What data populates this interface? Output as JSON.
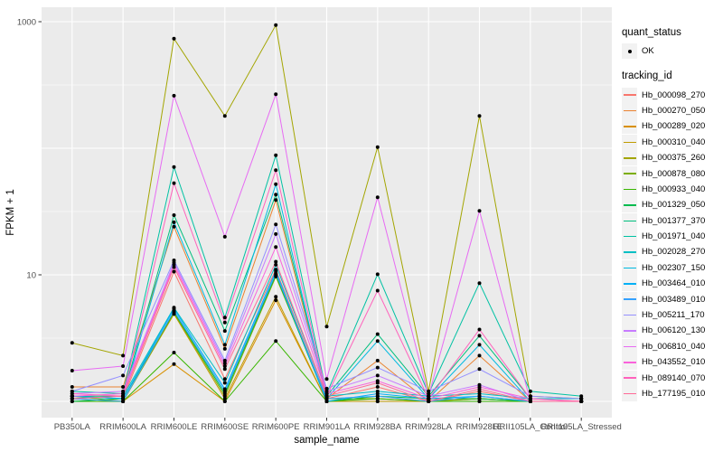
{
  "chart_data": {
    "type": "line",
    "title": "",
    "xlabel": "sample_name",
    "ylabel": "FPKM + 1",
    "y_scale": "log10",
    "ylim": [
      0.7,
      1400
    ],
    "grid": "on",
    "legend_position": "right",
    "panel_bg": "#EBEBEB",
    "grid_color": "#FFFFFF",
    "point_color": "#000000",
    "y_tick_labels": [
      {
        "value": 1000,
        "label": "1000"
      },
      {
        "value": 10,
        "label": "10"
      }
    ],
    "grid_major": [
      1,
      10,
      100,
      1000
    ],
    "grid_minor": [
      3.162,
      31.62,
      316.2
    ],
    "categories": [
      "PB350LA",
      "RRIM600LA",
      "RRIM600LE",
      "RRIM600SE",
      "RRIM600PE",
      "RRIM901LA",
      "RRIM928BA",
      "RRIM928LA",
      "RRIM928LE",
      "RRII105LA_Control",
      "RRII105LA_Stressed"
    ],
    "series": [
      {
        "name": "Hb_000098_270",
        "color": "#F8766D",
        "values": [
          1.1,
          1.05,
          10.6,
          1.5,
          11.0,
          1.05,
          1.3,
          1.0,
          1.2,
          1.0,
          1.0
        ]
      },
      {
        "name": "Hb_000270_050",
        "color": "#EA8331",
        "values": [
          1.3,
          1.3,
          24.0,
          2.6,
          39.0,
          1.05,
          2.1,
          1.0,
          2.3,
          1.0,
          1.0
        ]
      },
      {
        "name": "Hb_000289_020",
        "color": "#D89000",
        "values": [
          1.0,
          1.0,
          1.97,
          1.0,
          6.3,
          1.0,
          1.0,
          1.0,
          1.0,
          1.0,
          1.0
        ]
      },
      {
        "name": "Hb_000310_040",
        "color": "#C09B00",
        "values": [
          1.05,
          1.0,
          4.9,
          1.05,
          6.7,
          1.0,
          1.0,
          1.0,
          1.05,
          1.0,
          1.0
        ]
      },
      {
        "name": "Hb_000375_260",
        "color": "#A3A500",
        "values": [
          2.9,
          2.3,
          735,
          180,
          940,
          3.9,
          102,
          1.2,
          180,
          1.1,
          1.05
        ]
      },
      {
        "name": "Hb_000878_080",
        "color": "#7CAE00",
        "values": [
          1.1,
          1.0,
          5.0,
          1.1,
          9.7,
          1.05,
          1.05,
          1.0,
          1.05,
          1.0,
          1.0
        ]
      },
      {
        "name": "Hb_000933_040",
        "color": "#39B600",
        "values": [
          1.0,
          1.0,
          2.43,
          1.0,
          3.0,
          1.0,
          1.05,
          1.0,
          1.0,
          1.0,
          1.0
        ]
      },
      {
        "name": "Hb_001329_050",
        "color": "#00BB4E",
        "values": [
          1.0,
          1.05,
          5.1,
          1.15,
          10.0,
          1.0,
          1.1,
          1.05,
          1.05,
          1.0,
          1.0
        ]
      },
      {
        "name": "Hb_001377_370",
        "color": "#00BF7D",
        "values": [
          1.1,
          1.1,
          29.6,
          3.6,
          43.0,
          1.1,
          3.4,
          1.1,
          3.3,
          1.05,
          1.05
        ]
      },
      {
        "name": "Hb_001971_040",
        "color": "#00C1A3",
        "values": [
          1.2,
          1.15,
          71.0,
          4.6,
          88.0,
          1.15,
          10.1,
          1.15,
          8.6,
          1.2,
          1.1
        ]
      },
      {
        "name": "Hb_002028_270",
        "color": "#00BFC4",
        "values": [
          1.05,
          1.1,
          5.5,
          1.4,
          12.0,
          1.1,
          1.2,
          1.1,
          1.15,
          1.05,
          1.05
        ]
      },
      {
        "name": "Hb_002307_150",
        "color": "#00BAE0",
        "values": [
          1.1,
          1.05,
          26.0,
          2.8,
          52.0,
          1.05,
          3.0,
          1.05,
          2.8,
          1.0,
          1.0
        ]
      },
      {
        "name": "Hb_003464_010",
        "color": "#00B0F6",
        "values": [
          1.1,
          1.05,
          5.4,
          1.25,
          10.7,
          1.0,
          1.15,
          1.05,
          1.1,
          1.0,
          1.0
        ]
      },
      {
        "name": "Hb_003489_010",
        "color": "#35A2FF",
        "values": [
          1.05,
          1.0,
          5.2,
          1.2,
          10.3,
          1.05,
          1.1,
          1.0,
          1.1,
          1.0,
          1.0
        ]
      },
      {
        "name": "Hb_005211_170",
        "color": "#9590FF",
        "values": [
          1.2,
          1.6,
          13.0,
          2.1,
          25.0,
          1.26,
          1.85,
          1.2,
          1.8,
          1.1,
          1.05
        ]
      },
      {
        "name": "Hb_006120_130",
        "color": "#C77CFF",
        "values": [
          1.15,
          1.2,
          12.5,
          2.0,
          21.0,
          1.2,
          1.6,
          1.1,
          1.35,
          1.0,
          1.0
        ]
      },
      {
        "name": "Hb_006810_040",
        "color": "#E76BF3",
        "values": [
          1.75,
          1.9,
          260,
          20.0,
          267,
          1.5,
          41.0,
          1.1,
          32.0,
          1.0,
          1.0
        ]
      },
      {
        "name": "Hb_043552_010",
        "color": "#FA62DB",
        "values": [
          1.1,
          1.15,
          12.0,
          1.9,
          16.6,
          1.15,
          1.45,
          1.05,
          1.3,
          1.05,
          1.0
        ]
      },
      {
        "name": "Hb_089140_070",
        "color": "#FF62BC",
        "values": [
          1.15,
          1.1,
          53.0,
          4.2,
          67.0,
          1.1,
          7.5,
          1.05,
          3.7,
          1.05,
          1.0
        ]
      },
      {
        "name": "Hb_177195_010",
        "color": "#FF6A98",
        "values": [
          1.05,
          1.1,
          11.5,
          1.8,
          12.7,
          1.1,
          1.4,
          1.0,
          1.25,
          1.0,
          1.0
        ]
      }
    ]
  },
  "legend": {
    "quant_title": "quant_status",
    "quant_items": [
      {
        "label": "OK",
        "symbol": "point"
      }
    ],
    "tracking_title": "tracking_id"
  }
}
